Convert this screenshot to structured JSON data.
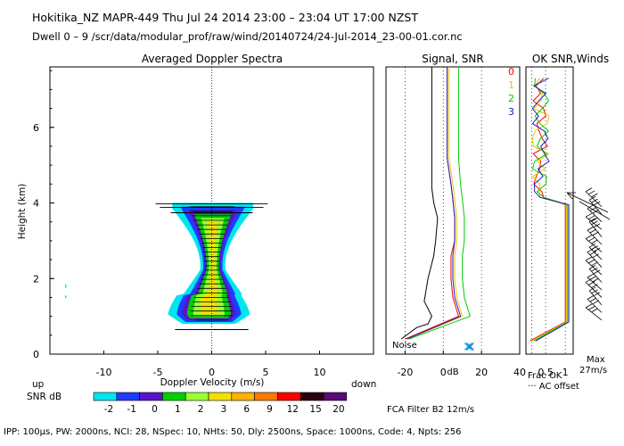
{
  "header": {
    "line1": "Hokitika_NZ   MAPR-449   Thu Jul 24 2014 23:00 – 23:04 UT 17:00 NZST",
    "line2": "Dwell   0 – 9    /scr/data/modular_prof/raw/wind/20140724/24-Jul-2014_23-00-01.cor.nc"
  },
  "footer": {
    "params": "IPP: 100μs,  PW: 2000ns,  NCI: 28,  NSpec: 10, NHts: 50,  Dly: 2500ns,  Space: 1000ns,  Code: 4,  Npts: 256",
    "fca": "FCA Filter B2 12m/s"
  },
  "colors": {
    "snr_scale": [
      "#00e5ee",
      "#1e3cff",
      "#5a14c8",
      "#00d000",
      "#9cff32",
      "#f0e000",
      "#ffb000",
      "#ff7800",
      "#ff0000",
      "#2a0010",
      "#5a0a78"
    ],
    "ok_series": [
      "#ff0000",
      "#e6c800",
      "#00cc00",
      "#2020c0"
    ]
  },
  "chart_data": [
    {
      "type": "heatmap",
      "title": "Averaged Doppler Spectra",
      "xlabel": "Doppler Velocity (m/s)",
      "ylabel": "Height (km)",
      "xlim": [
        -15,
        15
      ],
      "ylim": [
        0,
        7.6
      ],
      "x_ticks": [
        -10,
        -5,
        0,
        5,
        10
      ],
      "y_ticks": [
        0,
        2,
        4,
        6
      ],
      "x_side_labels": {
        "left": "up",
        "right": "down"
      },
      "colorbar_label": "SNR dB",
      "colorbar_ticks": [
        -2,
        -1,
        0,
        1,
        2,
        3,
        6,
        9,
        12,
        15,
        20
      ],
      "echo_heights_km": [
        0.8,
        4.0
      ],
      "echo_center_ms": 0.0
    },
    {
      "type": "line",
      "title": "Signal, SNR",
      "xlabel": "dB",
      "x_ticks": [
        -20,
        0,
        20,
        40
      ],
      "xlim": [
        -30,
        40
      ],
      "ylim": [
        0,
        7.6
      ],
      "annotation": "Noise",
      "series_labels": [
        "0",
        "1",
        "2",
        "3"
      ],
      "series": [
        {
          "name": "Noise",
          "points": [
            [
              -22,
              0.4
            ],
            [
              -14,
              0.7
            ],
            [
              -8,
              0.8
            ],
            [
              -6,
              1.0
            ],
            [
              -10,
              1.4
            ],
            [
              -8,
              2.0
            ],
            [
              -5,
              2.6
            ],
            [
              -4,
              3.0
            ],
            [
              -3,
              3.6
            ],
            [
              -5,
              4.0
            ],
            [
              -6,
              4.4
            ],
            [
              -6,
              5.6
            ],
            [
              -6,
              7.6
            ]
          ]
        },
        {
          "name": "0",
          "points": [
            [
              -20,
              0.4
            ],
            [
              8,
              1.0
            ],
            [
              5,
              1.5
            ],
            [
              4,
              2.0
            ],
            [
              4,
              2.6
            ],
            [
              6,
              3.0
            ],
            [
              6,
              3.6
            ],
            [
              5,
              4.1
            ],
            [
              4,
              4.5
            ],
            [
              2,
              5.2
            ],
            [
              2,
              6.0
            ],
            [
              2,
              7.6
            ]
          ]
        },
        {
          "name": "1",
          "points": [
            [
              -19,
              0.4
            ],
            [
              10,
              1.0
            ],
            [
              7,
              1.5
            ],
            [
              6,
              2.0
            ],
            [
              6,
              2.6
            ],
            [
              7,
              3.0
            ],
            [
              7,
              3.6
            ],
            [
              6,
              4.1
            ],
            [
              5,
              4.5
            ],
            [
              3,
              5.2
            ],
            [
              3,
              6.0
            ],
            [
              3,
              7.6
            ]
          ]
        },
        {
          "name": "2",
          "points": [
            [
              -18,
              0.4
            ],
            [
              14,
              1.0
            ],
            [
              11,
              1.5
            ],
            [
              10,
              2.0
            ],
            [
              10,
              2.6
            ],
            [
              11,
              3.0
            ],
            [
              11,
              3.6
            ],
            [
              10,
              4.1
            ],
            [
              9,
              4.5
            ],
            [
              8,
              5.2
            ],
            [
              8,
              6.0
            ],
            [
              8,
              7.6
            ]
          ]
        },
        {
          "name": "3",
          "points": [
            [
              -19,
              0.4
            ],
            [
              9,
              1.0
            ],
            [
              6,
              1.5
            ],
            [
              5,
              2.0
            ],
            [
              5,
              2.6
            ],
            [
              6,
              3.0
            ],
            [
              6,
              3.6
            ],
            [
              5,
              4.1
            ],
            [
              4,
              4.5
            ],
            [
              2,
              5.2
            ],
            [
              2,
              6.0
            ],
            [
              2,
              7.6
            ]
          ]
        }
      ],
      "markers": [
        [
          13,
          0.2
        ],
        [
          14,
          0.2
        ]
      ]
    },
    {
      "type": "line",
      "title": "OK SNR,Winds",
      "xlabel": "Frac OK",
      "x_ticks_labels": [
        "0.5",
        "1"
      ],
      "xlim": [
        0,
        1.2
      ],
      "ylim": [
        0,
        7.6
      ],
      "legend_note": "··· AC offset",
      "wind_max_label": "Max",
      "wind_max_value": "27m/s",
      "wind_barb_heights_km": [
        0.9,
        1.1,
        1.3,
        1.5,
        1.7,
        1.9,
        2.1,
        2.3,
        2.5,
        2.7,
        2.9,
        3.1,
        3.3,
        3.5,
        3.7,
        3.9
      ]
    }
  ]
}
